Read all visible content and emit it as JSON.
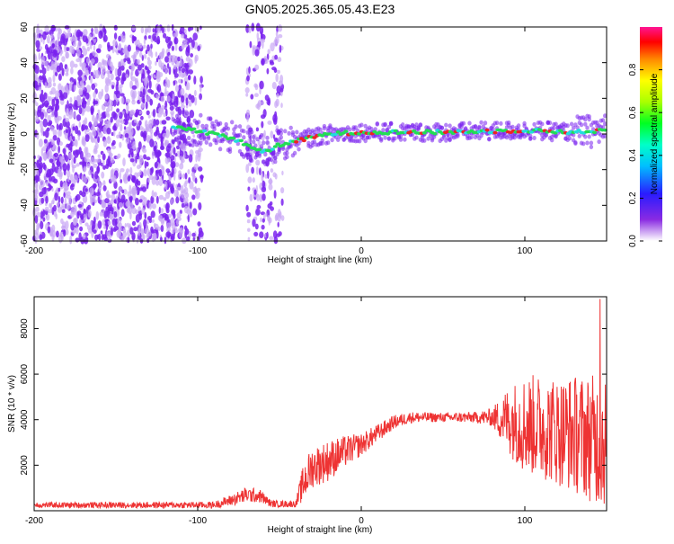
{
  "title": "GN05.2025.365.05.43.E23",
  "colors": {
    "snr_line": "#ee3333",
    "axis": "#000000",
    "dots": "#7a22ee",
    "dots_light": "#c9a8f5",
    "ridge_green": "#22dd55",
    "ridge_cyan": "#22dddd",
    "ridge_red": "#ee2222"
  },
  "chart_data": [
    {
      "type": "heatmap",
      "name": "spectrogram",
      "xlabel": "Height of straight line (km)",
      "ylabel": "Frequency (Hz)",
      "xlim": [
        -200,
        150
      ],
      "ylim": [
        -60,
        60
      ],
      "xticks": [
        -200,
        -100,
        0,
        100
      ],
      "xtick_labels": [
        "-200",
        "-100",
        "0",
        "100"
      ],
      "yticks": [
        -60,
        -40,
        -20,
        0,
        20,
        40,
        60
      ],
      "ytick_labels": [
        "-60",
        "-40",
        "-20",
        "0",
        "20",
        "40",
        "60"
      ],
      "colorbar": {
        "label": "Normalized spectral amplitude",
        "range": [
          0,
          1
        ],
        "ticks": [
          0.0,
          0.2,
          0.4,
          0.6,
          0.8
        ],
        "tick_labels": [
          "0.0",
          "0.2",
          "0.4",
          "0.6",
          "0.8"
        ]
      },
      "ridge": {
        "x": [
          -115,
          -100,
          -90,
          -80,
          -70,
          -60,
          -55,
          -50,
          -40,
          -30,
          -20,
          0,
          50,
          100,
          130,
          150
        ],
        "freq": [
          4,
          2,
          0,
          -2,
          -6,
          -10,
          -9,
          -6,
          -4,
          -2,
          0,
          1,
          1,
          2,
          1,
          2
        ]
      },
      "noise_region": {
        "x_range": [
          -200,
          -105
        ],
        "freq_range": [
          -60,
          60
        ]
      },
      "noise_band": {
        "x_range": [
          -70,
          -48
        ],
        "freq_range": [
          -60,
          60
        ]
      }
    },
    {
      "type": "line",
      "name": "snr",
      "xlabel": "Height of straight line (km)",
      "ylabel": "SNR (10 * v/v)",
      "xlim": [
        -200,
        150
      ],
      "ylim": [
        0,
        9400
      ],
      "xticks": [
        -200,
        -100,
        0,
        100
      ],
      "xtick_labels": [
        "-200",
        "-100",
        "0",
        "100"
      ],
      "yticks": [
        2000,
        4000,
        6000,
        8000
      ],
      "ytick_labels": [
        "2000",
        "4000",
        "6000",
        "8000"
      ],
      "envelope": {
        "x": [
          -200,
          -90,
          -80,
          -70,
          -62,
          -55,
          -40,
          -35,
          -30,
          -20,
          -10,
          0,
          10,
          20,
          30,
          50,
          70,
          80,
          90,
          100,
          110,
          120,
          130,
          140,
          150
        ],
        "mean": [
          250,
          250,
          450,
          700,
          650,
          300,
          300,
          1300,
          1900,
          2200,
          2600,
          2900,
          3400,
          3900,
          4100,
          4100,
          4100,
          4100,
          4000,
          3800,
          3700,
          3500,
          3400,
          3200,
          3000
        ],
        "spread": [
          120,
          150,
          250,
          350,
          300,
          150,
          150,
          900,
          900,
          900,
          700,
          500,
          400,
          300,
          250,
          200,
          250,
          400,
          1500,
          2200,
          2300,
          2400,
          2600,
          2800,
          3000
        ]
      },
      "peak": {
        "x": 146,
        "y": 9300
      }
    }
  ]
}
